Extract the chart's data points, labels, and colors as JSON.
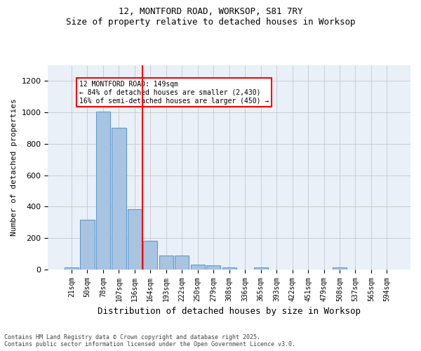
{
  "title_line1": "12, MONTFORD ROAD, WORKSOP, S81 7RY",
  "title_line2": "Size of property relative to detached houses in Worksop",
  "xlabel": "Distribution of detached houses by size in Worksop",
  "ylabel": "Number of detached properties",
  "categories": [
    "21sqm",
    "50sqm",
    "78sqm",
    "107sqm",
    "136sqm",
    "164sqm",
    "193sqm",
    "222sqm",
    "250sqm",
    "279sqm",
    "308sqm",
    "336sqm",
    "365sqm",
    "393sqm",
    "422sqm",
    "451sqm",
    "479sqm",
    "508sqm",
    "537sqm",
    "565sqm",
    "594sqm"
  ],
  "values": [
    10,
    315,
    1005,
    900,
    385,
    180,
    90,
    90,
    28,
    25,
    13,
    0,
    13,
    0,
    0,
    0,
    0,
    13,
    0,
    0,
    0
  ],
  "bar_color": "#a8c4e0",
  "bar_edge_color": "#5b9bd5",
  "vline_x": 5,
  "vline_label": "12 MONTFORD ROAD: 149sqm",
  "annotation_line2": "← 84% of detached houses are smaller (2,430)",
  "annotation_line3": "16% of semi-detached houses are larger (450) →",
  "box_color": "red",
  "ylim": [
    0,
    1300
  ],
  "yticks": [
    0,
    200,
    400,
    600,
    800,
    1000,
    1200
  ],
  "grid_color": "#c0c0c0",
  "background_color": "#eaf0f8",
  "footer_line1": "Contains HM Land Registry data © Crown copyright and database right 2025.",
  "footer_line2": "Contains public sector information licensed under the Open Government Licence v3.0."
}
